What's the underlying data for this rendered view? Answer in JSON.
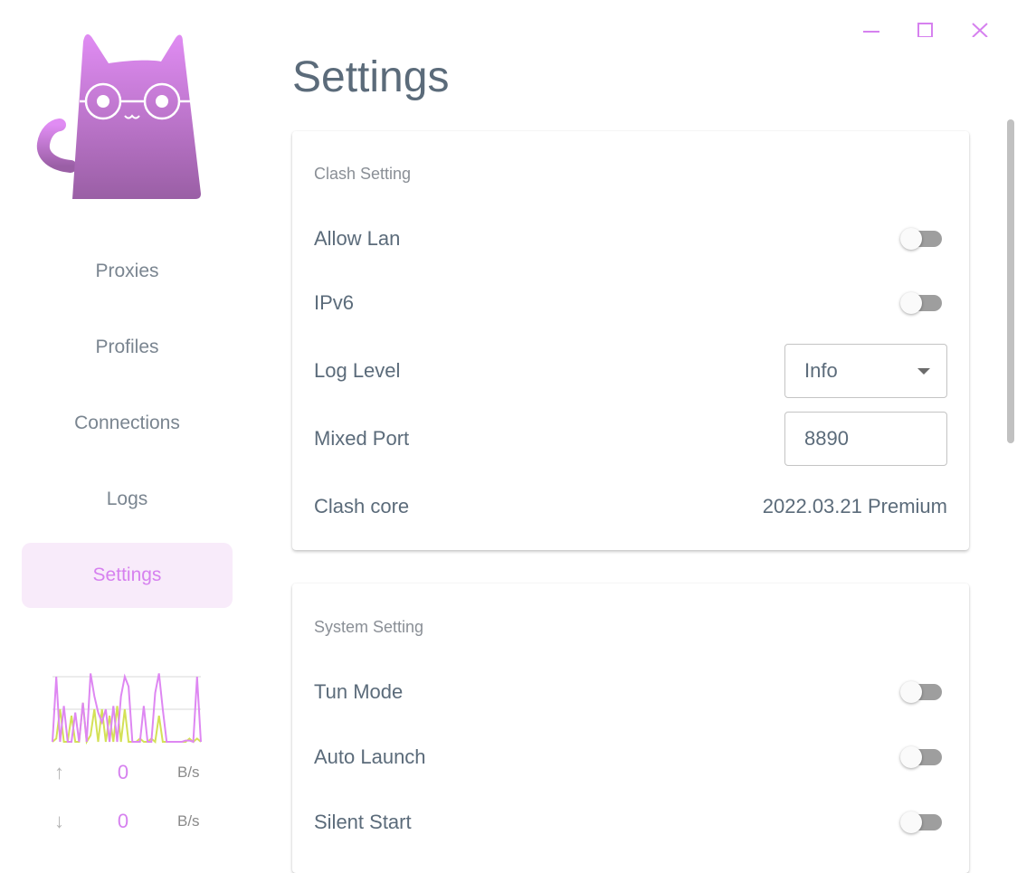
{
  "window": {
    "minimize_icon": "minimize-icon",
    "maximize_icon": "maximize-icon",
    "close_icon": "close-icon"
  },
  "sidebar": {
    "items": [
      {
        "label": "Proxies"
      },
      {
        "label": "Profiles"
      },
      {
        "label": "Connections"
      },
      {
        "label": "Logs"
      },
      {
        "label": "Settings",
        "active": true
      }
    ],
    "traffic": {
      "upload": {
        "value": "0",
        "unit": "B/s"
      },
      "download": {
        "value": "0",
        "unit": "B/s"
      },
      "upload_series": [
        0,
        1,
        0,
        0.55,
        0,
        0,
        0.45,
        0,
        0.6,
        0,
        1.05,
        0.7,
        0.45,
        0.3,
        0.5,
        0,
        0.55,
        0,
        0.7,
        1,
        0.85,
        0,
        0,
        0,
        0.55,
        0,
        0,
        0.75,
        1.05,
        0.5,
        0,
        0,
        0,
        0,
        0,
        0.02,
        0.02,
        0,
        1,
        0
      ],
      "download_series": [
        0,
        0.05,
        0.5,
        0,
        0,
        0.4,
        0,
        0,
        0.6,
        0,
        0.1,
        0.5,
        0,
        0.5,
        0,
        0.4,
        0,
        0.55,
        0,
        0.5,
        0,
        0,
        0,
        0.05,
        0,
        0,
        0.05,
        0,
        0.4,
        0,
        0,
        0,
        0,
        0,
        0,
        0,
        0.05,
        0,
        0.05,
        0
      ],
      "colors": {
        "upload": "#de87f2",
        "download": "#d4e157"
      }
    }
  },
  "page": {
    "title": "Settings"
  },
  "clash": {
    "title": "Clash Setting",
    "allow_lan": {
      "label": "Allow Lan",
      "on": false
    },
    "ipv6": {
      "label": "IPv6",
      "on": false
    },
    "log_level": {
      "label": "Log Level",
      "value": "Info"
    },
    "mixed_port": {
      "label": "Mixed Port",
      "value": "8890"
    },
    "core": {
      "label": "Clash core",
      "value": "2022.03.21 Premium"
    }
  },
  "system": {
    "title": "System Setting",
    "tun": {
      "label": "Tun Mode",
      "on": false
    },
    "auto_launch": {
      "label": "Auto Launch",
      "on": false
    },
    "silent_start": {
      "label": "Silent Start",
      "on": false
    }
  },
  "colors": {
    "accent": "#d681ef",
    "text": "#5b6b7a"
  }
}
